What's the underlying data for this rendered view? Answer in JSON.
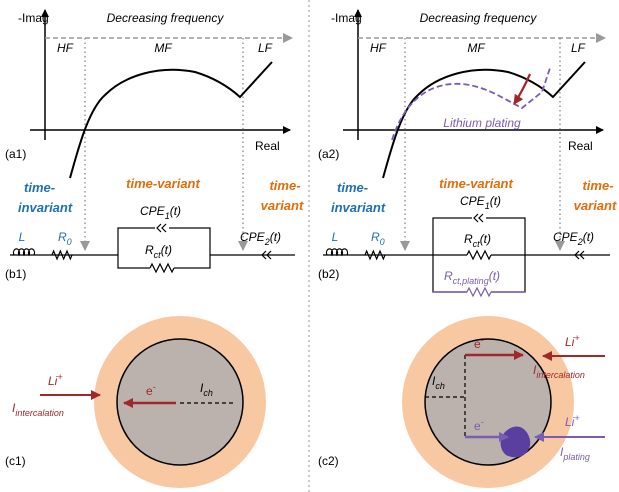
{
  "left": {
    "axis_y": "-Imag",
    "axis_x": "Real",
    "frequency": "Decreasing frequency",
    "regions": [
      "HF",
      "MF",
      "LF"
    ],
    "plot_label": "(a1)",
    "regime_invariant": [
      "time-",
      "invariant"
    ],
    "regime_variant": "time-variant",
    "regime_variant_late": [
      "time-",
      "variant"
    ],
    "inductor": "L",
    "r0": {
      "main": "R",
      "sub": "0"
    },
    "cpe1": {
      "main": "CPE",
      "sub": "1",
      "tail": "(t)"
    },
    "rct": {
      "main": "R",
      "sub": "ct",
      "tail": "(t)"
    },
    "cpe2": {
      "main": "CPE",
      "sub": "2",
      "tail": "(t)"
    },
    "circuit_label": "(b1)",
    "ion": {
      "main": "Li",
      "sup": "+"
    },
    "electron": {
      "main": "e",
      "sup": "-"
    },
    "channel": {
      "main": "I",
      "sub": "ch"
    },
    "current": {
      "main": "I",
      "sub": "intercalation"
    },
    "particle_label": "(c1)"
  },
  "right": {
    "axis_y": "-Imag",
    "axis_x": "Real",
    "frequency": "Decreasing frequency",
    "regions": [
      "HF",
      "MF",
      "LF"
    ],
    "plot_label": "(a2)",
    "plating": "Lithium plating",
    "regime_invariant": [
      "time-",
      "invariant"
    ],
    "regime_variant": "time-variant",
    "regime_variant_late": [
      "time-",
      "variant"
    ],
    "inductor": "L",
    "r0": {
      "main": "R",
      "sub": "0"
    },
    "cpe1": {
      "main": "CPE",
      "sub": "1",
      "tail": "(t)"
    },
    "rct": {
      "main": "R",
      "sub": "ct",
      "tail": "(t)"
    },
    "rct_plating": {
      "main": "R",
      "sub": "ct,plating",
      "tail": "(t)"
    },
    "cpe2": {
      "main": "CPE",
      "sub": "2",
      "tail": "(t)"
    },
    "circuit_label": "(b2)",
    "ion": {
      "main": "Li",
      "sup": "+"
    },
    "electron": {
      "main": "e",
      "sup": "-"
    },
    "channel": {
      "main": "I",
      "sub": "ch"
    },
    "current": {
      "main": "I",
      "sub": "intercalation"
    },
    "ion_plating": {
      "main": "Li",
      "sup": "+"
    },
    "electron_plating": {
      "main": "e",
      "sup": "-"
    },
    "current_plating": {
      "main": "I",
      "sub": "plating"
    },
    "particle_label": "(c2)"
  }
}
